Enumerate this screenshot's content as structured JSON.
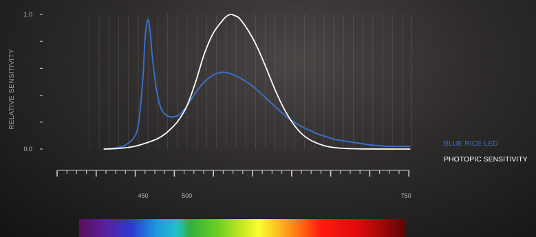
{
  "chart_data": {
    "type": "line",
    "ylabel": "RELATIVE SENSITIVITY",
    "xlabel": "",
    "ylim": [
      0,
      1.0
    ],
    "xlim": [
      400,
      760
    ],
    "y_tick_labels": [
      "0.0",
      "1.0"
    ],
    "x_tick_labels": [
      "450",
      "500",
      "750"
    ],
    "x_tick_values": [
      450,
      500,
      750
    ],
    "series": [
      {
        "name": "BLUE RICE LED",
        "color": "#3a6fc4",
        "x": [
          405,
          420,
          430,
          440,
          445,
          450,
          452,
          455,
          458,
          460,
          465,
          470,
          475,
          480,
          485,
          490,
          495,
          500,
          505,
          510,
          520,
          530,
          540,
          550,
          560,
          570,
          580,
          590,
          600,
          610,
          620,
          630,
          640,
          650,
          660,
          670,
          680,
          690,
          700,
          710,
          720,
          730,
          740,
          755
        ],
        "y": [
          0.0,
          0.01,
          0.03,
          0.09,
          0.2,
          0.55,
          0.8,
          0.96,
          0.88,
          0.72,
          0.45,
          0.31,
          0.26,
          0.24,
          0.24,
          0.25,
          0.28,
          0.32,
          0.37,
          0.42,
          0.5,
          0.55,
          0.57,
          0.56,
          0.53,
          0.49,
          0.44,
          0.38,
          0.32,
          0.26,
          0.21,
          0.17,
          0.14,
          0.11,
          0.09,
          0.07,
          0.06,
          0.05,
          0.04,
          0.03,
          0.025,
          0.02,
          0.02,
          0.02
        ]
      },
      {
        "name": "PHOTOPIC SENSITIVITY",
        "color": "#ffffff",
        "x": [
          405,
          420,
          440,
          460,
          470,
          480,
          490,
          500,
          510,
          520,
          530,
          540,
          545,
          550,
          555,
          560,
          570,
          580,
          590,
          600,
          610,
          620,
          630,
          640,
          650,
          660,
          670,
          680,
          700,
          755
        ],
        "y": [
          0.0,
          0.004,
          0.02,
          0.06,
          0.09,
          0.14,
          0.21,
          0.32,
          0.5,
          0.71,
          0.86,
          0.95,
          0.985,
          1.0,
          0.99,
          0.97,
          0.88,
          0.76,
          0.61,
          0.45,
          0.31,
          0.2,
          0.12,
          0.07,
          0.04,
          0.02,
          0.01,
          0.005,
          0.001,
          0.0
        ]
      }
    ],
    "legend_position": "right",
    "grid": true,
    "spectrum_bar": true
  }
}
